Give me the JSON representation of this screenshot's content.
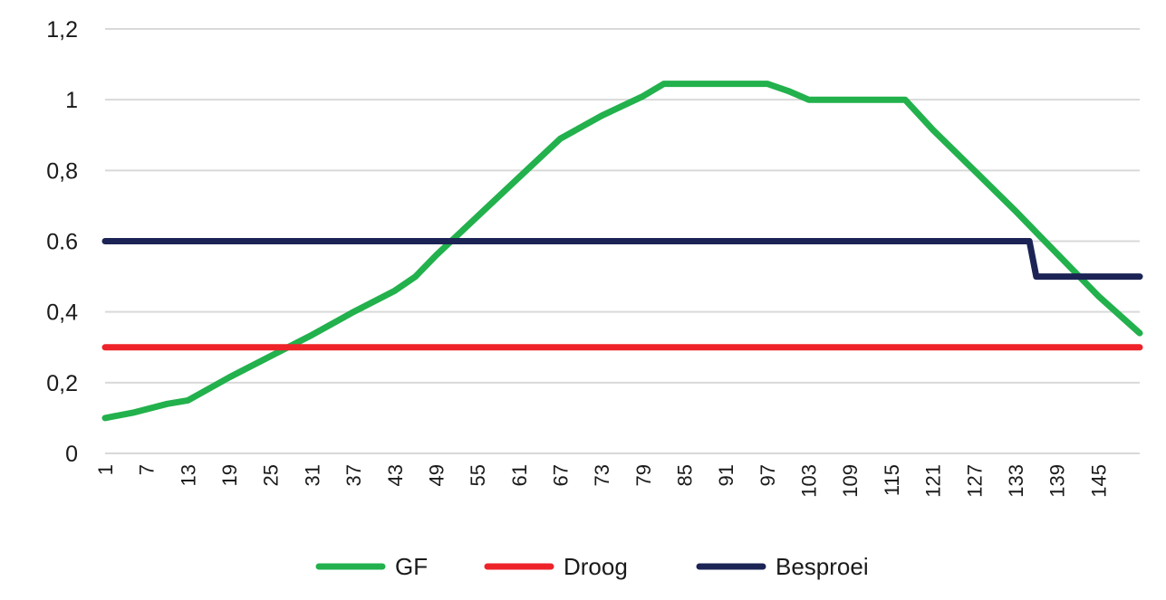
{
  "chart_data": {
    "type": "line",
    "ylim": [
      0,
      1.2
    ],
    "xlim": [
      1,
      150
    ],
    "grid": true,
    "legend_position": "bottom",
    "y_ticks": [
      "0",
      "0,2",
      "0,4",
      "0.6",
      "0,8",
      "1",
      "1,2"
    ],
    "y_tick_values": [
      0,
      0.2,
      0.4,
      0.6,
      0.8,
      1.0,
      1.2
    ],
    "x_ticks": [
      "1",
      "7",
      "13",
      "19",
      "25",
      "31",
      "37",
      "43",
      "49",
      "55",
      "61",
      "67",
      "73",
      "79",
      "85",
      "91",
      "97",
      "103",
      "109",
      "115",
      "121",
      "127",
      "133",
      "139",
      "145"
    ],
    "x_tick_values": [
      1,
      7,
      13,
      19,
      25,
      31,
      37,
      43,
      49,
      55,
      61,
      67,
      73,
      79,
      85,
      91,
      97,
      103,
      109,
      115,
      121,
      127,
      133,
      139,
      145
    ],
    "series": [
      {
        "name": "GF",
        "color": "#22b14c",
        "points": [
          [
            1,
            0.1
          ],
          [
            5,
            0.115
          ],
          [
            10,
            0.14
          ],
          [
            13,
            0.15
          ],
          [
            19,
            0.215
          ],
          [
            25,
            0.275
          ],
          [
            31,
            0.335
          ],
          [
            37,
            0.4
          ],
          [
            43,
            0.46
          ],
          [
            46,
            0.5
          ],
          [
            49,
            0.56
          ],
          [
            55,
            0.67
          ],
          [
            61,
            0.78
          ],
          [
            67,
            0.89
          ],
          [
            73,
            0.955
          ],
          [
            79,
            1.01
          ],
          [
            82,
            1.045
          ],
          [
            97,
            1.045
          ],
          [
            100,
            1.025
          ],
          [
            103,
            1.0
          ],
          [
            117,
            1.0
          ],
          [
            121,
            0.915
          ],
          [
            127,
            0.8
          ],
          [
            133,
            0.685
          ],
          [
            139,
            0.565
          ],
          [
            145,
            0.445
          ],
          [
            151,
            0.34
          ]
        ]
      },
      {
        "name": "Droog",
        "color": "#ee2329",
        "points": [
          [
            1,
            0.3
          ],
          [
            151,
            0.3
          ]
        ]
      },
      {
        "name": "Besproei",
        "color": "#1c2456",
        "points": [
          [
            1,
            0.6
          ],
          [
            135,
            0.6
          ],
          [
            136,
            0.5
          ],
          [
            151,
            0.5
          ]
        ]
      }
    ]
  }
}
